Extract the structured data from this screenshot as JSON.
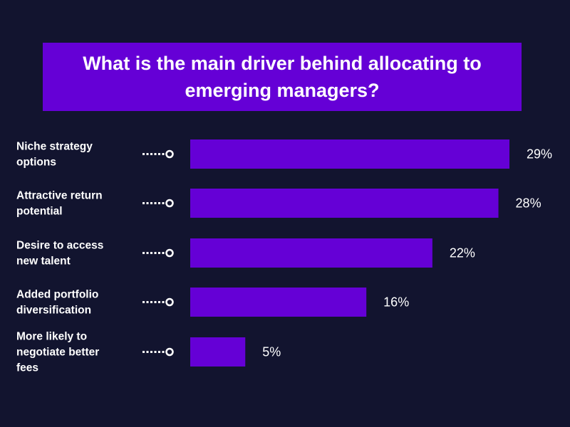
{
  "chart_data": {
    "type": "bar",
    "orientation": "horizontal",
    "title": "What is the main driver behind allocating to emerging managers?",
    "categories": [
      [
        "Niche strategy",
        "options"
      ],
      [
        "Attractive return",
        "potential"
      ],
      [
        "Desire to access",
        "new talent"
      ],
      [
        "Added portfolio",
        "diversification"
      ],
      [
        "More likely to",
        "negotiate better",
        "fees"
      ]
    ],
    "values": [
      29,
      28,
      22,
      16,
      5
    ],
    "value_labels": [
      "29%",
      "28%",
      "22%",
      "16%",
      "5%"
    ],
    "unit": "%",
    "xlim": [
      0,
      29
    ],
    "grid": false,
    "legend": "none"
  },
  "colors": {
    "background": "#12142f",
    "bar": "#6500d6",
    "title_box": "#6500d6",
    "text": "#ffffff"
  }
}
